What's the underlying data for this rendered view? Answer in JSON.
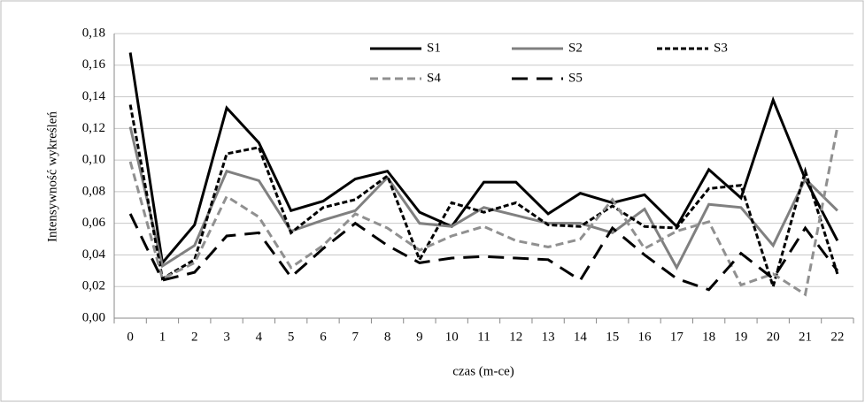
{
  "chart_data": {
    "type": "line",
    "x_label": "czas (m-ce)",
    "y_label": "Intensywność wykreśleń",
    "categories": [
      "0",
      "1",
      "2",
      "3",
      "4",
      "5",
      "6",
      "7",
      "8",
      "9",
      "10",
      "11",
      "12",
      "13",
      "14",
      "15",
      "16",
      "17",
      "18",
      "19",
      "20",
      "21",
      "22"
    ],
    "ylim": [
      0,
      0.18
    ],
    "yticks": [
      {
        "value": 0,
        "label": "0,00"
      },
      {
        "value": 0.02,
        "label": "0,02"
      },
      {
        "value": 0.04,
        "label": "0,04"
      },
      {
        "value": 0.06,
        "label": "0,06"
      },
      {
        "value": 0.08,
        "label": "0,08"
      },
      {
        "value": 0.1,
        "label": "0,10"
      },
      {
        "value": 0.12,
        "label": "0,12"
      },
      {
        "value": 0.14,
        "label": "0,14"
      },
      {
        "value": 0.16,
        "label": "0,16"
      },
      {
        "value": 0.18,
        "label": "0,18"
      }
    ],
    "grid": true,
    "legend": "top",
    "series": [
      {
        "name": "S1",
        "color": "#000000",
        "dash": "none",
        "values": [
          0.168,
          0.035,
          0.059,
          0.133,
          0.111,
          0.068,
          0.074,
          0.088,
          0.093,
          0.067,
          0.058,
          0.086,
          0.086,
          0.066,
          0.079,
          0.073,
          0.078,
          0.058,
          0.094,
          0.076,
          0.138,
          0.088,
          0.049
        ]
      },
      {
        "name": "S2",
        "color": "#808080",
        "dash": "none",
        "values": [
          0.121,
          0.033,
          0.046,
          0.093,
          0.087,
          0.055,
          0.062,
          0.068,
          0.089,
          0.06,
          0.058,
          0.07,
          0.065,
          0.06,
          0.06,
          0.054,
          0.069,
          0.032,
          0.072,
          0.07,
          0.046,
          0.088,
          0.068
        ]
      },
      {
        "name": "S3",
        "color": "#000000",
        "dash": "6 3",
        "values": [
          0.135,
          0.025,
          0.037,
          0.104,
          0.108,
          0.054,
          0.07,
          0.075,
          0.09,
          0.037,
          0.073,
          0.067,
          0.073,
          0.059,
          0.058,
          0.071,
          0.058,
          0.057,
          0.082,
          0.084,
          0.02,
          0.093,
          0.028
        ]
      },
      {
        "name": "S4",
        "color": "#909090",
        "dash": "9 5",
        "values": [
          0.099,
          0.025,
          0.035,
          0.077,
          0.064,
          0.032,
          0.046,
          0.066,
          0.057,
          0.043,
          0.052,
          0.058,
          0.049,
          0.045,
          0.05,
          0.075,
          0.044,
          0.055,
          0.061,
          0.021,
          0.028,
          0.015,
          0.121
        ]
      },
      {
        "name": "S5",
        "color": "#000000",
        "dash": "18 10",
        "values": [
          0.066,
          0.024,
          0.029,
          0.052,
          0.054,
          0.026,
          0.044,
          0.06,
          0.046,
          0.035,
          0.038,
          0.039,
          0.038,
          0.037,
          0.024,
          0.057,
          0.04,
          0.025,
          0.018,
          0.041,
          0.025,
          0.057,
          0.03
        ]
      }
    ]
  }
}
